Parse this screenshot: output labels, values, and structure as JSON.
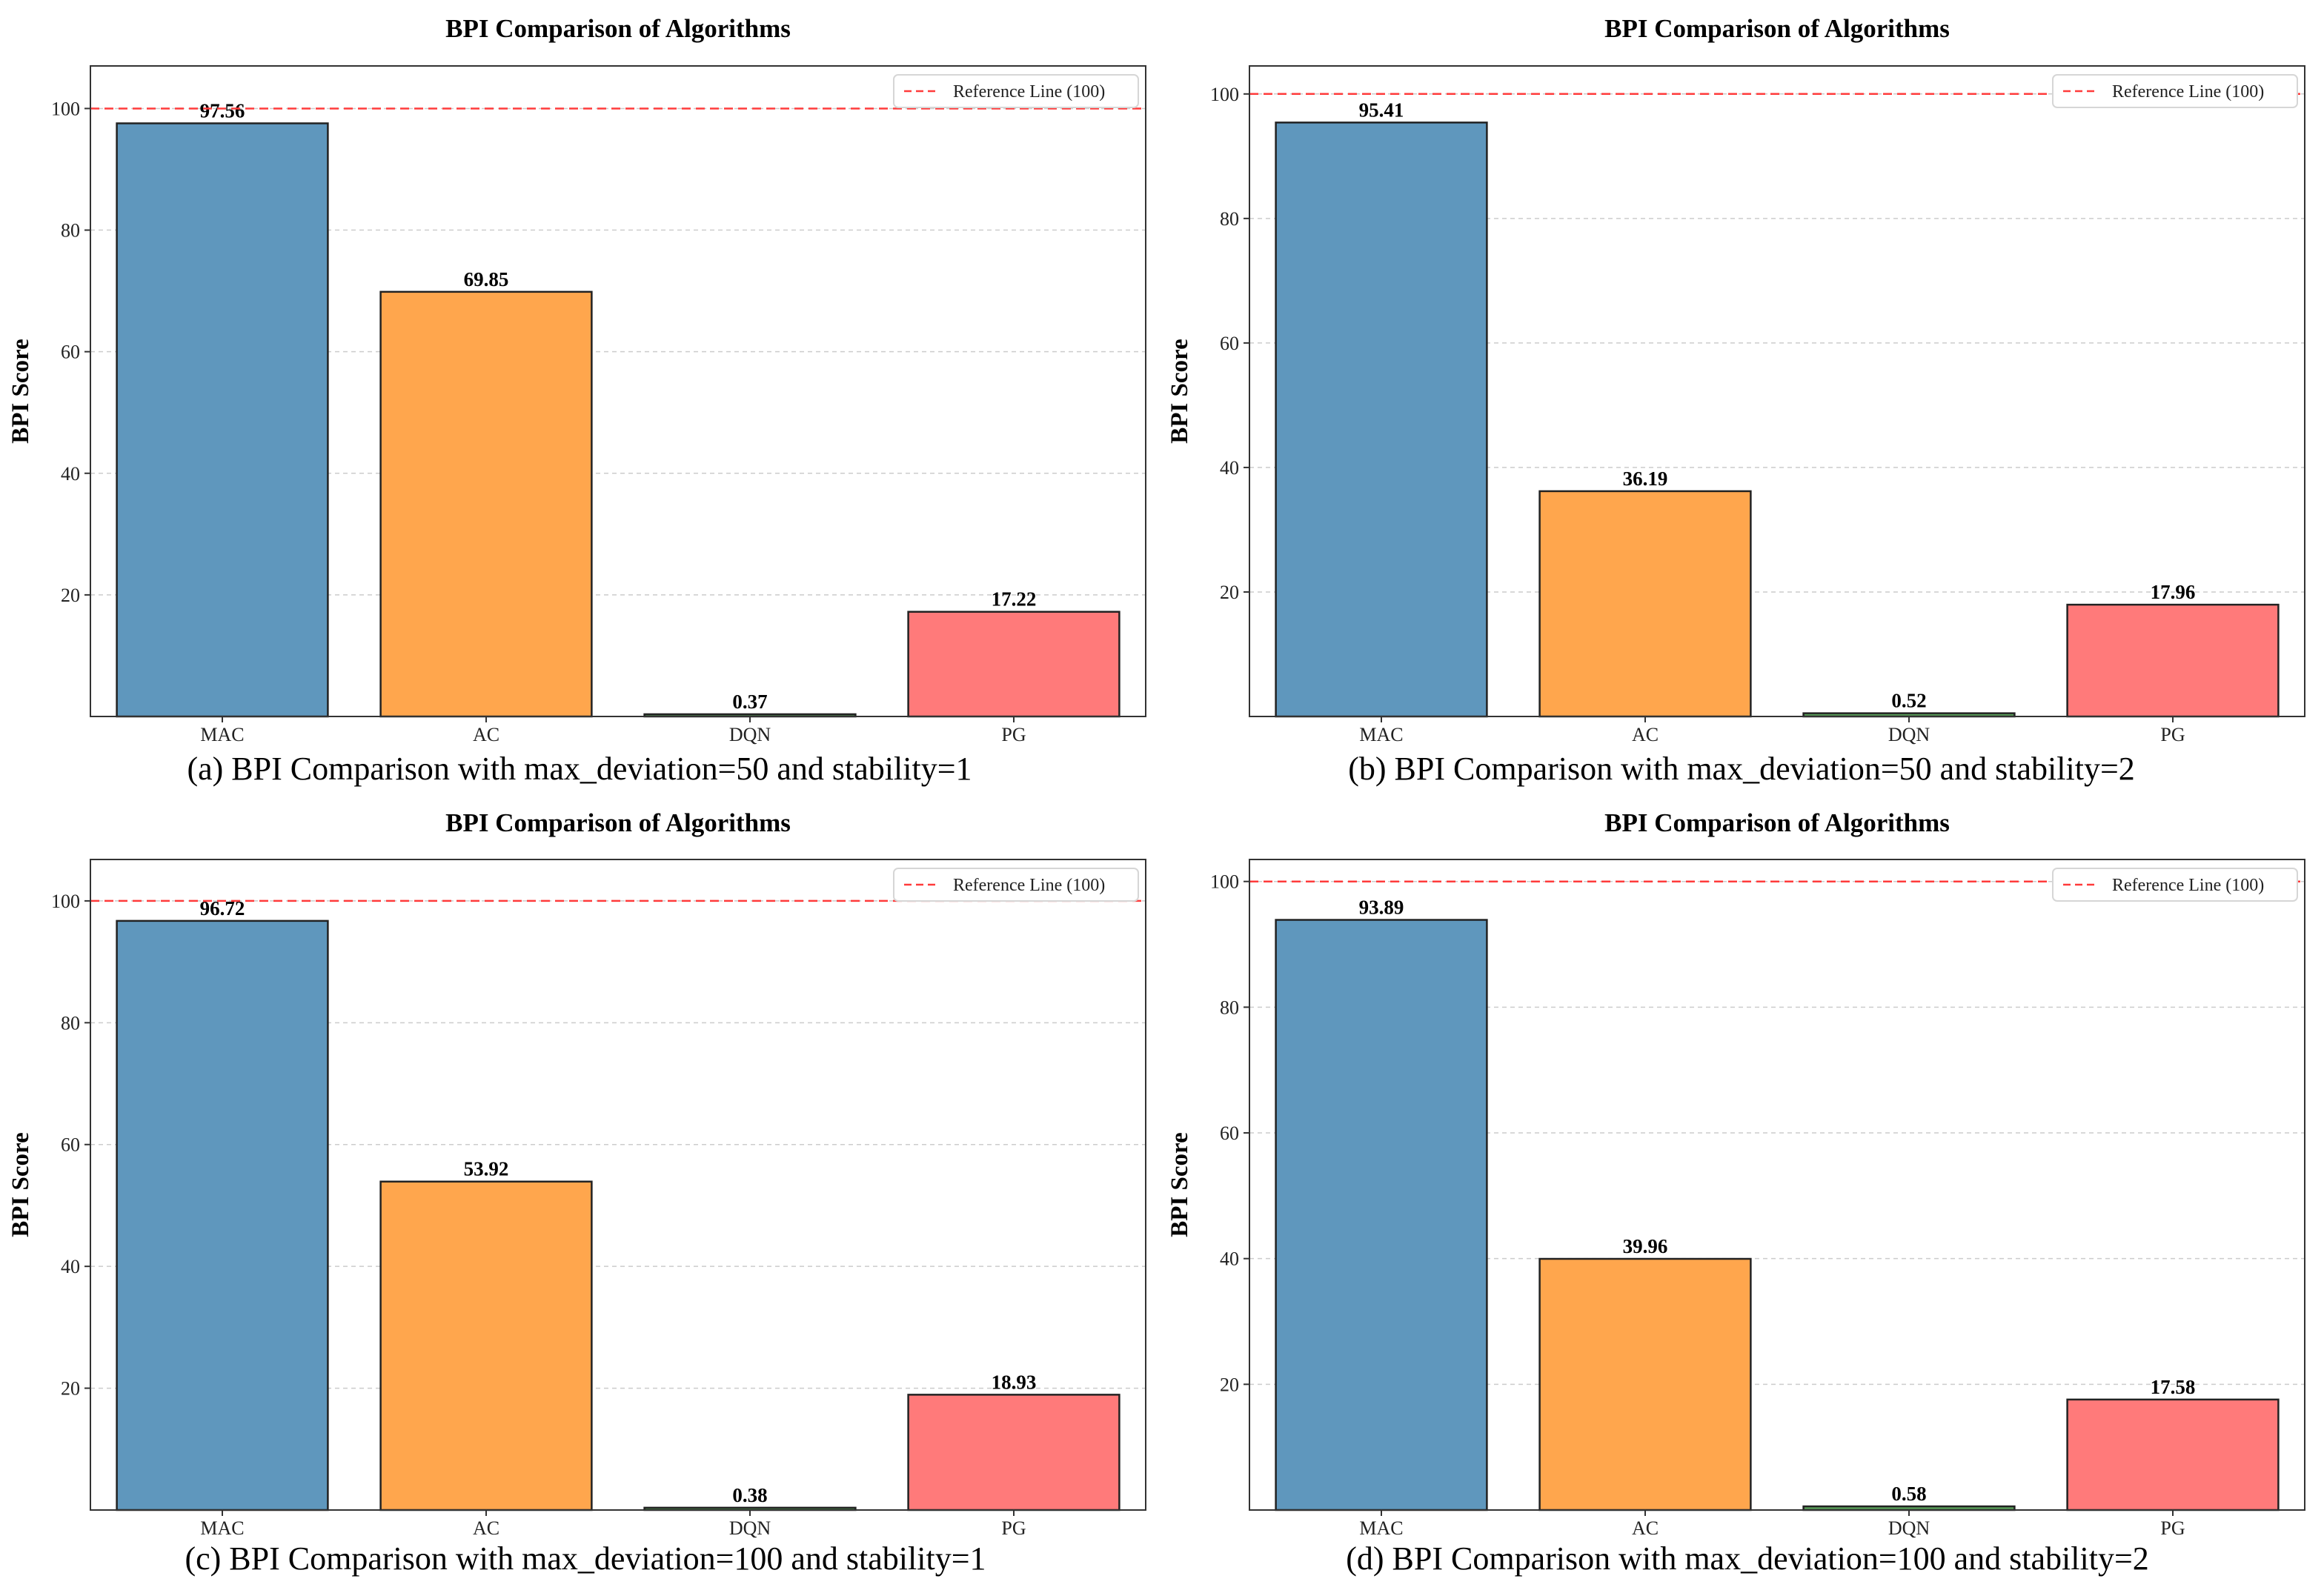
{
  "figure": {
    "colors": {
      "bar_colors": [
        "#5f97bd",
        "#ffa64d",
        "#5aa05a",
        "#ff7a7a"
      ],
      "reference_line": "#ff3b3b",
      "grid": "#cccccc",
      "axis": "#333333"
    }
  },
  "chart_data": [
    {
      "type": "bar",
      "title": "BPI Comparison of Algorithms",
      "caption": "(a) BPI Comparison with max_deviation=50 and stability=1",
      "xlabel": "",
      "ylabel": "BPI Score",
      "categories": [
        "MAC",
        "AC",
        "DQN",
        "PG"
      ],
      "values": [
        97.56,
        69.85,
        0.37,
        17.22
      ],
      "value_labels": [
        "97.56",
        "69.85",
        "0.37",
        "17.22"
      ],
      "ylim": [
        0,
        107
      ],
      "yticks": [
        20,
        40,
        60,
        80,
        100
      ],
      "reference_line": {
        "value": 100,
        "label": "Reference Line (100)"
      },
      "legend_position": "top-right",
      "grid": true
    },
    {
      "type": "bar",
      "title": "BPI Comparison of Algorithms",
      "caption": "(b) BPI Comparison with max_deviation=50 and stability=2",
      "xlabel": "",
      "ylabel": "BPI Score",
      "categories": [
        "MAC",
        "AC",
        "DQN",
        "PG"
      ],
      "values": [
        95.41,
        36.19,
        0.52,
        17.96
      ],
      "value_labels": [
        "95.41",
        "36.19",
        "0.52",
        "17.96"
      ],
      "ylim": [
        0,
        104.5
      ],
      "yticks": [
        20,
        40,
        60,
        80,
        100
      ],
      "reference_line": {
        "value": 100,
        "label": "Reference Line (100)"
      },
      "legend_position": "top-right",
      "grid": true
    },
    {
      "type": "bar",
      "title": "BPI Comparison of Algorithms",
      "caption": "(c) BPI Comparison with max_deviation=100 and stability=1",
      "xlabel": "",
      "ylabel": "BPI Score",
      "categories": [
        "MAC",
        "AC",
        "DQN",
        "PG"
      ],
      "values": [
        96.72,
        53.92,
        0.38,
        18.93
      ],
      "value_labels": [
        "96.72",
        "53.92",
        "0.38",
        "18.93"
      ],
      "ylim": [
        0,
        106.8
      ],
      "yticks": [
        20,
        40,
        60,
        80,
        100
      ],
      "reference_line": {
        "value": 100,
        "label": "Reference Line (100)"
      },
      "legend_position": "top-right",
      "grid": true
    },
    {
      "type": "bar",
      "title": "BPI Comparison of Algorithms",
      "caption": "(d) BPI Comparison with max_deviation=100 and stability=2",
      "xlabel": "",
      "ylabel": "BPI Score",
      "categories": [
        "MAC",
        "AC",
        "DQN",
        "PG"
      ],
      "values": [
        93.89,
        39.96,
        0.58,
        17.58
      ],
      "value_labels": [
        "93.89",
        "39.96",
        "0.58",
        "17.58"
      ],
      "ylim": [
        0,
        103.5
      ],
      "yticks": [
        20,
        40,
        60,
        80,
        100
      ],
      "reference_line": {
        "value": 100,
        "label": "Reference Line (100)"
      },
      "legend_position": "top-right",
      "grid": true
    }
  ]
}
